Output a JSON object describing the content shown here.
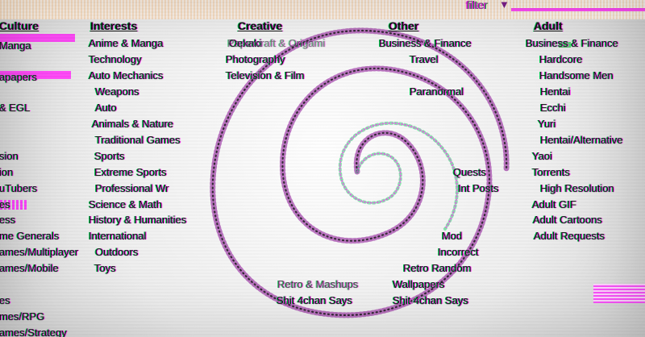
{
  "header": {
    "filter_label": "filter",
    "filter_icon": "▼"
  },
  "columns": {
    "culture": {
      "title": "Culture",
      "items": [
        "Manga",
        "apapers",
        "",
        "& EGL",
        "",
        "",
        "sion",
        "ion",
        "uTubers",
        "es",
        "ess",
        "me Generals",
        "ames/Multiplayer",
        "ames/Mobile",
        "",
        "es",
        "mes/RPG",
        "ames/Strategy"
      ]
    },
    "interests": {
      "title": "Interests",
      "items": [
        "Anime & Manga",
        "Technology",
        "Auto Mechanics",
        "Weapons",
        "Auto",
        "Animals & Nature",
        "Traditional Games",
        "Sports",
        "Extreme Sports",
        "Professional Wr",
        "Science & Math",
        "History & Humanities",
        "International",
        "Outdoors",
        "Toys"
      ]
    },
    "creative": {
      "title": "Creative",
      "items": [
        "Oekaki",
        "Papercraft & Origami",
        "Photography",
        "Television & Film"
      ]
    },
    "other": {
      "title": "Other",
      "items": [
        "Business & Finance",
        "Travel",
        "",
        "Paranormal",
        "",
        "",
        "Quests",
        "Int Posts",
        "",
        "",
        "",
        "Mod",
        "Incorrect",
        "Retro Random",
        "Wallpapers",
        "Shit 4chan Says"
      ]
    },
    "adult": {
      "title": "Adult",
      "items": [
        "Business & Finance",
        "Hardcore",
        "Handsome Men",
        "Hentai",
        "Ecchi",
        "Yuri",
        "Hentai/Alternative",
        "Yaoi",
        "Torrents",
        "High Resolution",
        "Adult GIF",
        "Adult Cartoons",
        "Adult Requests"
      ]
    },
    "middle_overlay": {
      "items": [
        "Retro & Mashups",
        "Shit 4chan Says",
        "Shit 4chan Says"
      ]
    }
  },
  "colors": {
    "accent_magenta": "#ff3ef8",
    "accent_green": "#39c95b",
    "text_dark": "#151515",
    "top_band": "#fff3e6"
  }
}
